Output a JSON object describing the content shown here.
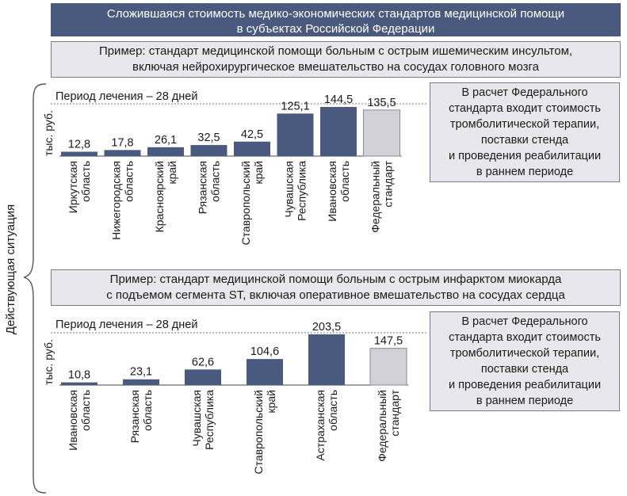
{
  "title": {
    "line1": "Сложившаяся стоимость медико-экономических стандартов медицинской помощи",
    "line2": "в субъектах Российской Федерации"
  },
  "side_label": "Действующая ситуация",
  "colors": {
    "bar": "#4a5a7e",
    "federal_bar": "#d2d2d6",
    "header": "#4a5a7e",
    "box_bg": "#e8e8ec"
  },
  "example1": {
    "line1": "Пример: стандарт медицинской помощи больным с острым ишемическим инсультом,",
    "line2": "включая нейрохирургическое вмешательство на сосудах головного мозга"
  },
  "example2": {
    "line1": "Пример: стандарт медицинской помощи больным с острым инфарктом миокарда",
    "line2": "с подъемом сегмента ST, включая оперативное вмешательство на сосудах сердца"
  },
  "note": {
    "lines": [
      "В расчет Федерального",
      "стандарта входит стоимость",
      "тромболитической терапии,",
      "поставки стенда",
      "и проведения реабилитации",
      "в раннем периоде"
    ]
  },
  "chart_data": [
    {
      "type": "bar",
      "annotation": "Период лечения – 28 дней",
      "ylabel": "тыс. руб.",
      "categories": [
        [
          "Иркутская",
          "область"
        ],
        [
          "Нижегородская",
          "область"
        ],
        [
          "Красноярский",
          "край"
        ],
        [
          "Рязанская",
          "область"
        ],
        [
          "Ставропольский",
          "край"
        ],
        [
          "Чувашская",
          "Республика"
        ],
        [
          "Ивановская",
          "область"
        ],
        [
          "Федеральный",
          "стандарт"
        ]
      ],
      "values": [
        12.8,
        17.8,
        26.1,
        32.5,
        42.5,
        125.1,
        144.5,
        135.5
      ],
      "value_labels": [
        "12,8",
        "17,8",
        "26,1",
        "32,5",
        "42,5",
        "125,1",
        "144,5",
        "135,5"
      ],
      "highlight_last": true
    },
    {
      "type": "bar",
      "annotation": "Период лечения – 28 дней",
      "ylabel": "тыс. руб.",
      "categories": [
        [
          "Ивановская",
          "область"
        ],
        [
          "Рязанская",
          "область"
        ],
        [
          "Чувашская",
          "Республика"
        ],
        [
          "Ставропольский",
          "край"
        ],
        [
          "Астраханская",
          "область"
        ],
        [
          "Федеральный",
          "стандарт"
        ]
      ],
      "values": [
        10.8,
        23.1,
        62.6,
        104.6,
        203.5,
        147.5
      ],
      "value_labels": [
        "10,8",
        "23,1",
        "62,6",
        "104,6",
        "203,5",
        "147,5"
      ],
      "highlight_last": true
    }
  ]
}
